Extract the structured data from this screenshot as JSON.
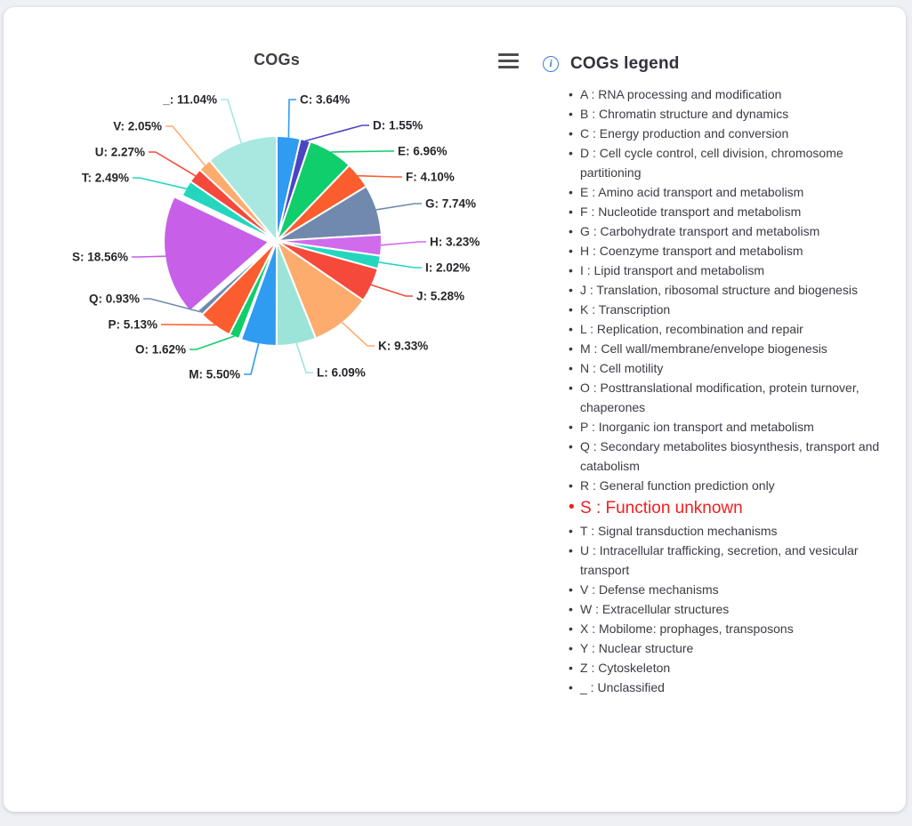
{
  "page": {
    "background": "#EEF0F3",
    "card_background": "#FFFFFF"
  },
  "icons": {
    "toolbox": "hamburger-menu-icon",
    "legend_info": "info-circle-icon"
  },
  "chart_data": {
    "type": "pie",
    "title": "COGs",
    "value_unit": "percent",
    "label_style": "outside-with-leader-lines",
    "start_angle": "12-o-clock",
    "direction": "clockwise",
    "slices": [
      {
        "code": "C",
        "pct": 3.64,
        "color": "#2F9BF1",
        "labeled": true
      },
      {
        "code": "D",
        "pct": 1.55,
        "color": "#4B45C4",
        "labeled": true
      },
      {
        "code": "E",
        "pct": 6.96,
        "color": "#10CE6B",
        "labeled": true
      },
      {
        "code": "F",
        "pct": 4.1,
        "color": "#FB5D2E",
        "labeled": true
      },
      {
        "code": "G",
        "pct": 7.74,
        "color": "#7189AD",
        "labeled": true
      },
      {
        "code": "H",
        "pct": 3.23,
        "color": "#D06BEC",
        "labeled": true
      },
      {
        "code": "I",
        "pct": 2.02,
        "color": "#25D6BF",
        "labeled": true
      },
      {
        "code": "J",
        "pct": 5.28,
        "color": "#F4493B",
        "labeled": true
      },
      {
        "code": "K",
        "pct": 9.33,
        "color": "#FDAC6E",
        "labeled": true
      },
      {
        "code": "L",
        "pct": 6.09,
        "color": "#9DE4D8",
        "labeled": true
      },
      {
        "code": "M",
        "pct": 5.5,
        "color": "#2F9BF1",
        "labeled": true
      },
      {
        "code": "N",
        "pct": 0.3,
        "color": "#4B45C4",
        "labeled": false
      },
      {
        "code": "O",
        "pct": 1.62,
        "color": "#10CE6B",
        "labeled": true
      },
      {
        "code": "P",
        "pct": 5.13,
        "color": "#FB5D2E",
        "labeled": true
      },
      {
        "code": "Q",
        "pct": 0.93,
        "color": "#7189AD",
        "labeled": true
      },
      {
        "code": "S",
        "pct": 18.56,
        "color": "#C75FE8",
        "labeled": true,
        "exploded": true
      },
      {
        "code": "T",
        "pct": 2.49,
        "color": "#25D6BF",
        "labeled": true
      },
      {
        "code": "U",
        "pct": 2.27,
        "color": "#F4493B",
        "labeled": true
      },
      {
        "code": "V",
        "pct": 2.05,
        "color": "#FDAC6E",
        "labeled": true
      },
      {
        "code": "_",
        "pct": 11.04,
        "color": "#A8E8E0",
        "labeled": true
      }
    ]
  },
  "legend": {
    "title": "COGs legend",
    "highlight_color": "#EF1F1F",
    "items": [
      {
        "code": "A",
        "label": "RNA processing and modification"
      },
      {
        "code": "B",
        "label": "Chromatin structure and dynamics"
      },
      {
        "code": "C",
        "label": "Energy production and conversion"
      },
      {
        "code": "D",
        "label": "Cell cycle control, cell division, chromosome partitioning"
      },
      {
        "code": "E",
        "label": "Amino acid transport and metabolism"
      },
      {
        "code": "F",
        "label": "Nucleotide transport and metabolism"
      },
      {
        "code": "G",
        "label": "Carbohydrate transport and metabolism"
      },
      {
        "code": "H",
        "label": "Coenzyme transport and metabolism"
      },
      {
        "code": "I",
        "label": "Lipid transport and metabolism"
      },
      {
        "code": "J",
        "label": "Translation, ribosomal structure and biogenesis"
      },
      {
        "code": "K",
        "label": "Transcription"
      },
      {
        "code": "L",
        "label": "Replication, recombination and repair"
      },
      {
        "code": "M",
        "label": "Cell wall/membrane/envelope biogenesis"
      },
      {
        "code": "N",
        "label": "Cell motility"
      },
      {
        "code": "O",
        "label": "Posttranslational modification, protein turnover, chaperones"
      },
      {
        "code": "P",
        "label": "Inorganic ion transport and metabolism"
      },
      {
        "code": "Q",
        "label": "Secondary metabolites biosynthesis, transport and catabolism"
      },
      {
        "code": "R",
        "label": "General function prediction only"
      },
      {
        "code": "S",
        "label": "Function unknown",
        "highlighted": true
      },
      {
        "code": "T",
        "label": "Signal transduction mechanisms"
      },
      {
        "code": "U",
        "label": "Intracellular trafficking, secretion, and vesicular transport"
      },
      {
        "code": "V",
        "label": "Defense mechanisms"
      },
      {
        "code": "W",
        "label": "Extracellular structures"
      },
      {
        "code": "X",
        "label": "Mobilome: prophages, transposons"
      },
      {
        "code": "Y",
        "label": "Nuclear structure"
      },
      {
        "code": "Z",
        "label": "Cytoskeleton"
      },
      {
        "code": "_",
        "label": "Unclassified"
      }
    ]
  }
}
